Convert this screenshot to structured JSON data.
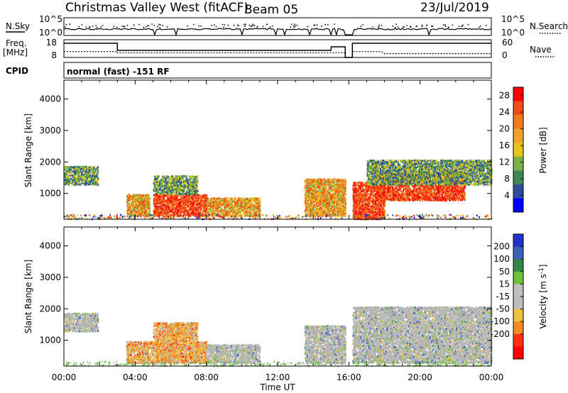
{
  "header": {
    "station": "Christmas Valley West (fitACF)",
    "beam": "Beam 05",
    "date": "23/Jul/2019"
  },
  "noise_panel": {
    "left_label": "N.Sky",
    "left_ticks": [
      "10^5",
      "10^0"
    ],
    "right_label": "N.Search",
    "right_ticks": [
      "10^5",
      "10^0"
    ]
  },
  "freq_panel": {
    "left_label_1": "Freq.",
    "left_label_2": "[MHz]",
    "left_ticks": [
      "18",
      "8"
    ],
    "right_label": "Nave",
    "right_ticks": [
      "60",
      "0"
    ]
  },
  "cpid": {
    "label": "CPID",
    "mode": "normal (fast) -151 RF"
  },
  "colors": {
    "power_scale": [
      "#0000ff",
      "#2b4f9e",
      "#3e8a55",
      "#7cb342",
      "#e8c619",
      "#f2a12a",
      "#f07a1c",
      "#f04d18",
      "#ff0000"
    ],
    "velocity_scale": [
      "#2233cc",
      "#3a60b8",
      "#2f8a4a",
      "#6dc236",
      "#bdbdbd",
      "#bdbdbd",
      "#f2c040",
      "#f28a20",
      "#ff3010",
      "#ff0000"
    ],
    "gray_scatter": "#b5b5b5"
  },
  "chart_data": [
    {
      "type": "heatmap",
      "name": "power",
      "title": "",
      "xlabel": "Time UT",
      "ylabel": "Slant Range [km]",
      "x_ticks": [
        "00:00",
        "04:00",
        "08:00",
        "12:00",
        "16:00",
        "20:00",
        "00:00"
      ],
      "xlim_hours": [
        0,
        24
      ],
      "y_ticks": [
        "1000",
        "2000",
        "3000",
        "4000"
      ],
      "ylim": [
        180,
        4600
      ],
      "data_gap_hours": [
        15.8,
        16.2
      ],
      "colorbar": {
        "label": "Power [dB]",
        "ticks": [
          "4",
          "8",
          "12",
          "16",
          "20",
          "24",
          "28"
        ],
        "range": [
          0,
          30
        ]
      },
      "regions": [
        {
          "t": [
            0.0,
            1.9
          ],
          "r": [
            1300,
            1900
          ],
          "level": "mid"
        },
        {
          "t": [
            3.5,
            4.8
          ],
          "r": [
            300,
            1000
          ],
          "level": "high"
        },
        {
          "t": [
            5.0,
            8.0
          ],
          "r": [
            300,
            1000
          ],
          "level": "max"
        },
        {
          "t": [
            5.0,
            7.5
          ],
          "r": [
            1000,
            1600
          ],
          "level": "mid"
        },
        {
          "t": [
            8.0,
            11.0
          ],
          "r": [
            300,
            900
          ],
          "level": "high"
        },
        {
          "t": [
            13.5,
            15.8
          ],
          "r": [
            300,
            1500
          ],
          "level": "high"
        },
        {
          "t": [
            16.2,
            18.0
          ],
          "r": [
            200,
            1400
          ],
          "level": "max"
        },
        {
          "t": [
            17.5,
            22.5
          ],
          "r": [
            800,
            1700
          ],
          "level": "max"
        },
        {
          "t": [
            17.0,
            24.0
          ],
          "r": [
            1300,
            2100
          ],
          "level": "mid"
        }
      ]
    },
    {
      "type": "heatmap",
      "name": "velocity",
      "title": "",
      "xlabel": "Time UT",
      "ylabel": "Slant Range [km]",
      "x_ticks": [
        "00:00",
        "04:00",
        "08:00",
        "12:00",
        "16:00",
        "20:00",
        "00:00"
      ],
      "xlim_hours": [
        0,
        24
      ],
      "y_ticks": [
        "1000",
        "2000",
        "3000",
        "4000"
      ],
      "ylim": [
        180,
        4600
      ],
      "data_gap_hours": [
        15.8,
        16.2
      ],
      "colorbar": {
        "label": "Velocity [m s^-1]",
        "ticks": [
          "200",
          "100",
          "50",
          "15",
          "-15",
          "-50",
          "-100",
          "-200"
        ],
        "range": [
          -250,
          250
        ]
      },
      "regions": [
        {
          "t": [
            0.0,
            1.9
          ],
          "r": [
            1300,
            1900
          ],
          "level": "zero"
        },
        {
          "t": [
            3.5,
            8.0
          ],
          "r": [
            300,
            1000
          ],
          "level": "neg"
        },
        {
          "t": [
            5.0,
            7.5
          ],
          "r": [
            1000,
            1600
          ],
          "level": "neg"
        },
        {
          "t": [
            8.0,
            11.0
          ],
          "r": [
            300,
            900
          ],
          "level": "zero"
        },
        {
          "t": [
            13.5,
            15.8
          ],
          "r": [
            300,
            1500
          ],
          "level": "zero"
        },
        {
          "t": [
            16.2,
            24.0
          ],
          "r": [
            300,
            2100
          ],
          "level": "zero"
        }
      ]
    }
  ]
}
